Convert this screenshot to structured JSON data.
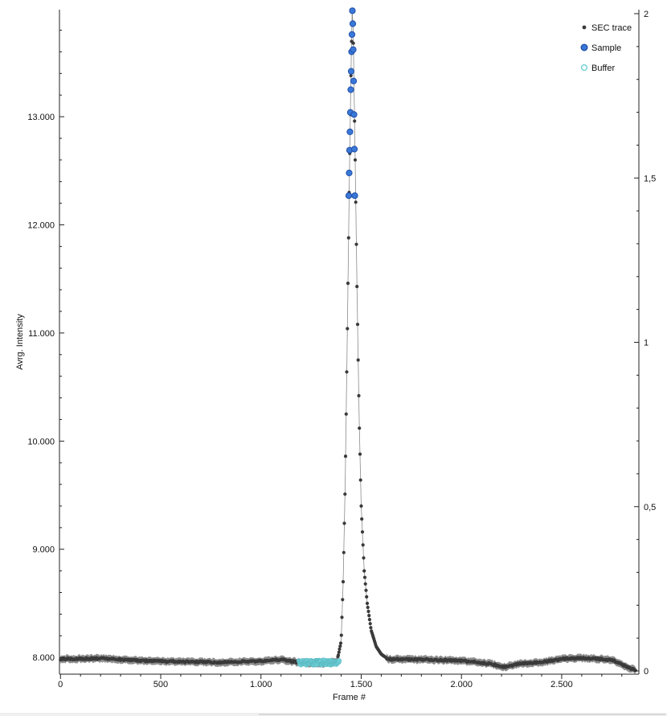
{
  "chart_data": {
    "type": "scatter",
    "title": "",
    "xlabel": "Frame #",
    "ylabel": "Avrg. Intensity",
    "xlim": [
      -5,
      2885
    ],
    "ylim": [
      7845,
      13990
    ],
    "y2lim": [
      0,
      2
    ],
    "x_ticks": [
      0,
      500,
      1000,
      1500,
      2000,
      2500
    ],
    "x_tick_labels": [
      "0",
      "500",
      "1.000",
      "1.500",
      "2.000",
      "2.500"
    ],
    "y_ticks": [
      8000,
      9000,
      10000,
      11000,
      12000,
      13000
    ],
    "y_tick_labels": [
      "8.000",
      "9.000",
      "10.000",
      "11.000",
      "12.000",
      "13.000"
    ],
    "y2_ticks": [
      0,
      0.5,
      1,
      1.5,
      2
    ],
    "y2_tick_labels": [
      "0",
      "0,5",
      "1",
      "1,5",
      "2"
    ],
    "grid": false,
    "legend_position": "top-right",
    "baseline_profile": {
      "x": [
        0,
        200,
        400,
        600,
        800,
        1000,
        1100,
        1200,
        1300,
        1380,
        1600,
        1800,
        2000,
        2150,
        2210,
        2280,
        2400,
        2500,
        2600,
        2700,
        2760,
        2800,
        2840,
        2870
      ],
      "y": [
        7985,
        7990,
        7970,
        7960,
        7955,
        7965,
        7980,
        7950,
        7945,
        7960,
        7985,
        7980,
        7970,
        7940,
        7910,
        7940,
        7955,
        7985,
        7995,
        7985,
        7970,
        7935,
        7900,
        7880
      ]
    },
    "peak_profile": {
      "x": [
        1380,
        1400,
        1410,
        1420,
        1430,
        1440,
        1450,
        1455,
        1460,
        1470,
        1480,
        1490,
        1500,
        1515,
        1530,
        1550,
        1575,
        1600,
        1630
      ],
      "y": [
        7965,
        8150,
        8700,
        9600,
        10900,
        12300,
        13500,
        13990,
        13800,
        12600,
        11300,
        10200,
        9400,
        8800,
        8500,
        8250,
        8100,
        8030,
        7990
      ]
    },
    "series": [
      {
        "name": "SEC trace",
        "marker": "filled-circle",
        "color": "#3a3a3a",
        "band_color": "#7a7a7a",
        "band_halfwidth": 35,
        "x_range": [
          0,
          2870
        ],
        "frames": 2871
      },
      {
        "name": "Sample",
        "marker": "filled-circle",
        "color": "#3a78d8",
        "edge_color": "#1f4fa8",
        "x": [
          1438,
          1440,
          1442,
          1444,
          1446,
          1448,
          1450,
          1452,
          1454,
          1456,
          1458,
          1460,
          1462,
          1464,
          1466,
          1468
        ],
        "y": [
          12270,
          12480,
          12690,
          12860,
          13040,
          13250,
          13420,
          13600,
          13760,
          13980,
          13860,
          13620,
          13330,
          13020,
          12700,
          12270
        ]
      },
      {
        "name": "Buffer",
        "marker": "filled-circle",
        "color": "#6fd0d8",
        "edge_color": "#5ab8c0",
        "x_range": [
          1190,
          1390
        ],
        "y_range": [
          7930,
          7975
        ]
      }
    ],
    "secondary_axis": {
      "ticks": [
        0,
        0.5,
        1,
        1.5,
        2
      ]
    }
  },
  "legend": {
    "items": [
      {
        "label": "SEC trace",
        "color": "#3a3a3a"
      },
      {
        "label": "Sample",
        "color": "#3a78d8"
      },
      {
        "label": "Buffer",
        "color": "#6fd0d8"
      }
    ]
  }
}
